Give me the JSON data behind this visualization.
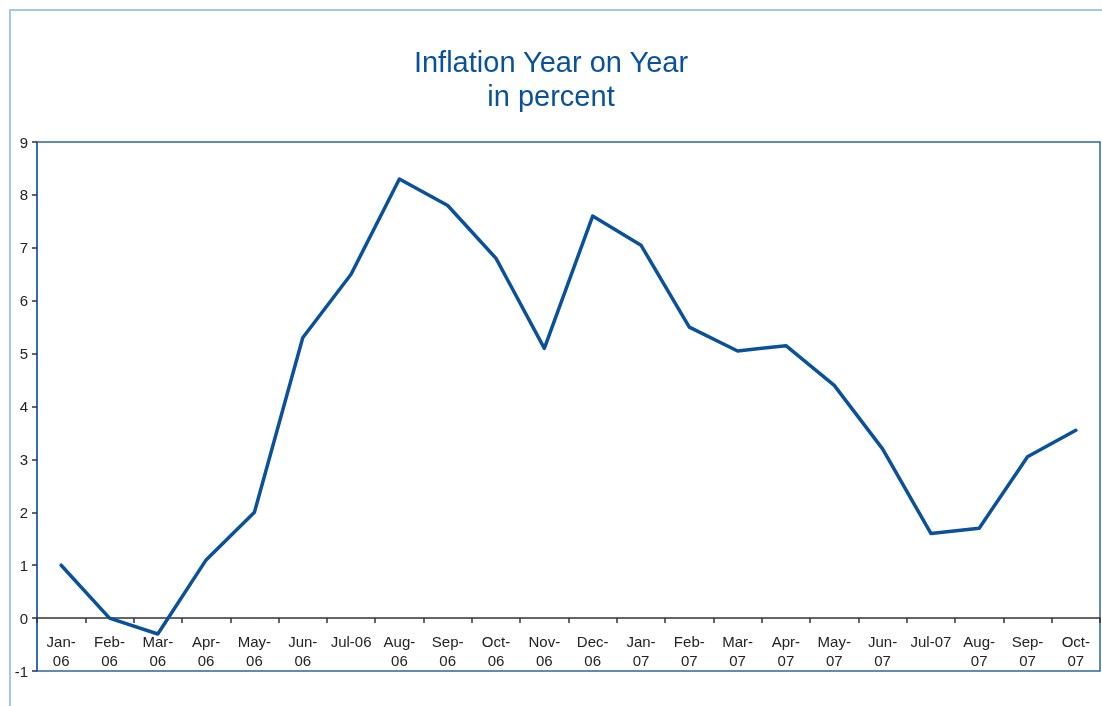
{
  "chart_data": {
    "type": "line",
    "title": "Inflation Year on Year",
    "subtitle": "in percent",
    "categories": [
      "Jan-06",
      "Feb-06",
      "Mar-06",
      "Apr-06",
      "May-06",
      "Jun-06",
      "Jul-06",
      "Aug-06",
      "Sep-06",
      "Oct-06",
      "Nov-06",
      "Dec-06",
      "Jan-07",
      "Feb-07",
      "Mar-07",
      "Apr-07",
      "May-07",
      "Jun-07",
      "Jul-07",
      "Aug-07",
      "Sep-07",
      "Oct-07"
    ],
    "series": [
      {
        "color": "#0a519c",
        "values": [
          1.0,
          0.0,
          -0.3,
          1.1,
          2.0,
          5.3,
          6.5,
          8.3,
          7.8,
          6.8,
          5.1,
          7.6,
          7.05,
          5.5,
          5.05,
          5.15,
          4.4,
          3.2,
          1.6,
          1.7,
          3.05,
          3.55
        ]
      }
    ],
    "ylim": [
      -1,
      9
    ],
    "yticks": [
      -1,
      0,
      1,
      2,
      3,
      4,
      5,
      6,
      7,
      8,
      9
    ],
    "marker": "none",
    "line_style": "solid"
  }
}
